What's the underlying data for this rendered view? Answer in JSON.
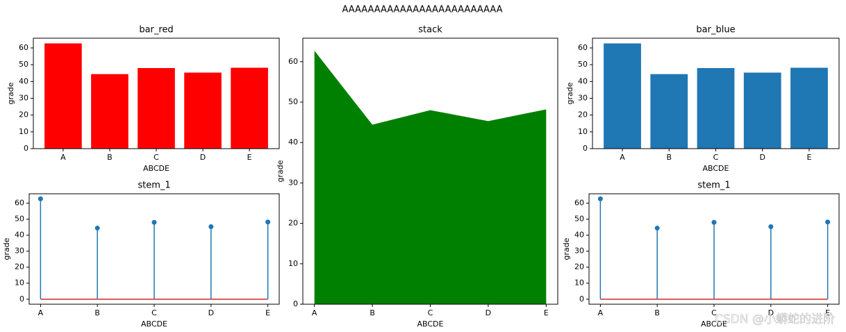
{
  "title": "AAAAAAAAAAAAAAAAAAAAAAAAA",
  "watermark": "CSDN @小蟒蛇的进阶",
  "chart_data": [
    {
      "type": "bar",
      "title": "bar_red",
      "xlabel": "ABCDE",
      "ylabel": "grade",
      "categories": [
        "A",
        "B",
        "C",
        "D",
        "E"
      ],
      "values": [
        62.7,
        44.4,
        48,
        45.3,
        48.2
      ],
      "color": "#ff0000",
      "ylim": [
        0,
        65.8
      ],
      "yticks": [
        0,
        10,
        20,
        30,
        40,
        50,
        60
      ]
    },
    {
      "type": "area",
      "title": "stack",
      "xlabel": "ABCDE",
      "ylabel": "grade",
      "categories": [
        "A",
        "B",
        "C",
        "D",
        "E"
      ],
      "values": [
        62.7,
        44.4,
        48,
        45.3,
        48.2
      ],
      "color": "#008000",
      "ylim": [
        0,
        65.8
      ],
      "yticks": [
        0,
        10,
        20,
        30,
        40,
        50,
        60
      ]
    },
    {
      "type": "bar",
      "title": "bar_blue",
      "xlabel": "ABCDE",
      "ylabel": "grade",
      "categories": [
        "A",
        "B",
        "C",
        "D",
        "E"
      ],
      "values": [
        62.7,
        44.4,
        48,
        45.3,
        48.2
      ],
      "color": "#1f77b4",
      "ylim": [
        0,
        65.8
      ],
      "yticks": [
        0,
        10,
        20,
        30,
        40,
        50,
        60
      ]
    },
    {
      "type": "stem",
      "title": "stem_1",
      "xlabel": "ABCDE",
      "ylabel": "grade",
      "categories": [
        "A",
        "B",
        "C",
        "D",
        "E"
      ],
      "values": [
        62.7,
        44.4,
        48,
        45.3,
        48.2
      ],
      "color": "#1f77b4",
      "baseline_color": "#d62728",
      "ylim": [
        -3.14,
        65.84
      ],
      "yticks": [
        0,
        10,
        20,
        30,
        40,
        50,
        60
      ]
    },
    {
      "type": "stem",
      "title": "stem_1",
      "xlabel": "ABCDE",
      "ylabel": "grade",
      "categories": [
        "A",
        "B",
        "C",
        "D",
        "E"
      ],
      "values": [
        62.7,
        44.4,
        48,
        45.3,
        48.2
      ],
      "color": "#1f77b4",
      "baseline_color": "#d62728",
      "ylim": [
        -3.14,
        65.84
      ],
      "yticks": [
        0,
        10,
        20,
        30,
        40,
        50,
        60
      ]
    }
  ]
}
